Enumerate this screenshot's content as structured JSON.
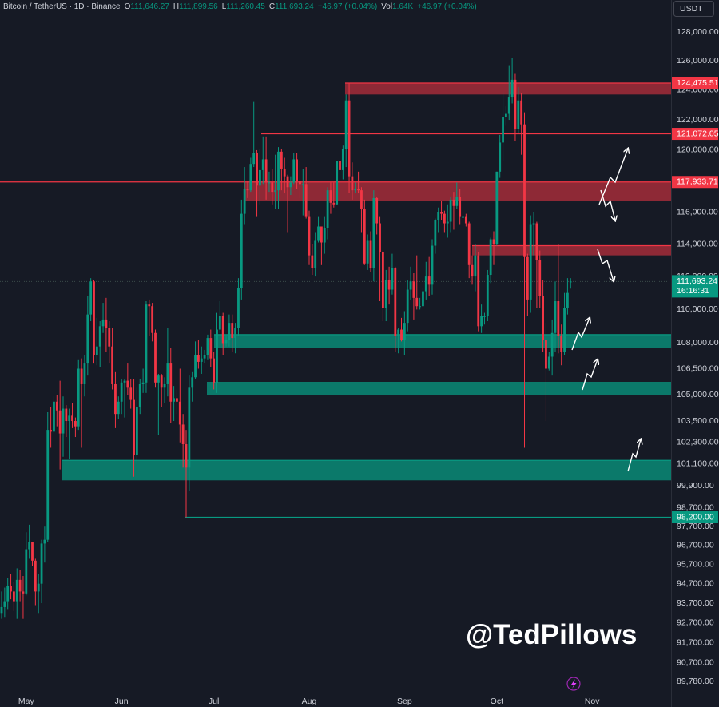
{
  "chart_data": {
    "type": "candlestick",
    "header": {
      "symbol": "Bitcoin / TetherUS · 1D · Binance",
      "fields": [
        {
          "key": "O",
          "value": "111,646.27"
        },
        {
          "key": "H",
          "value": "111,899.56"
        },
        {
          "key": "L",
          "value": "111,260.45"
        },
        {
          "key": "C",
          "value": "111,693.24"
        }
      ],
      "change": "+46.97 (+0.04%)",
      "volume": {
        "key": "Vol",
        "value": "1.64K"
      },
      "volume_change": "+46.97 (+0.04%)"
    },
    "currency": "USDT",
    "watermark": "@TedPillows",
    "x_end_label": "Nov",
    "categories": [
      null,
      null,
      null,
      null,
      null,
      null,
      null,
      null,
      "May",
      null,
      null,
      null,
      null,
      null,
      null,
      null,
      null,
      null,
      null,
      null,
      null,
      null,
      null,
      null,
      null,
      null,
      null,
      null,
      null,
      null,
      null,
      null,
      null,
      null,
      null,
      null,
      null,
      null,
      null,
      "Jun",
      null,
      null,
      null,
      null,
      null,
      null,
      null,
      null,
      null,
      null,
      null,
      null,
      null,
      null,
      null,
      null,
      null,
      null,
      null,
      null,
      null,
      null,
      null,
      null,
      null,
      null,
      null,
      null,
      null,
      "Jul",
      null,
      null,
      null,
      null,
      null,
      null,
      null,
      null,
      null,
      null,
      null,
      null,
      null,
      null,
      null,
      null,
      null,
      null,
      null,
      null,
      null,
      null,
      null,
      null,
      null,
      null,
      null,
      null,
      null,
      null,
      "Aug",
      null,
      null,
      null,
      null,
      null,
      null,
      null,
      null,
      null,
      null,
      null,
      null,
      null,
      null,
      null,
      null,
      null,
      null,
      null,
      null,
      null,
      null,
      null,
      null,
      null,
      null,
      null,
      null,
      null,
      null,
      "Sep",
      null,
      null,
      null,
      null,
      null,
      null,
      null,
      null,
      null,
      null,
      null,
      null,
      null,
      null,
      null,
      null,
      null,
      null,
      null,
      null,
      null,
      null,
      null,
      null,
      null,
      null,
      null,
      null,
      null,
      "Oct",
      null,
      null,
      null,
      null,
      null,
      null,
      null,
      null,
      null,
      null,
      null,
      null,
      null,
      null,
      null,
      null,
      null,
      null,
      null,
      null,
      null,
      null,
      null,
      null
    ],
    "open": [
      93200,
      93500,
      93800,
      94600,
      94300,
      93800,
      94900,
      94300,
      94200,
      96500,
      96900,
      95900,
      94300,
      94700,
      96800,
      97000,
      103000,
      102900,
      104600,
      104100,
      102800,
      104200,
      103500,
      103800,
      103500,
      103200,
      106500,
      105600,
      106800,
      109700,
      111700,
      107300,
      107800,
      109000,
      109400,
      108900,
      107800,
      105600,
      103900,
      104600,
      105700,
      105800,
      105400,
      104700,
      101600,
      104300,
      105600,
      105700,
      110300,
      110200,
      108600,
      105700,
      106100,
      105400,
      105600,
      106800,
      104600,
      104800,
      104600,
      103300,
      102200,
      100900,
      105400,
      106000,
      107300,
      106900,
      107100,
      107300,
      108300,
      107100,
      105700,
      108800,
      109600,
      108000,
      108200,
      109200,
      108300,
      108900,
      111300,
      115900,
      117500,
      117400,
      119100,
      119800,
      117700,
      118700,
      119400,
      117900,
      117900,
      117300,
      117400,
      119900,
      118800,
      118300,
      117600,
      117900,
      119400,
      118000,
      117800,
      117800,
      115700,
      113300,
      112500,
      114200,
      115100,
      114100,
      115000,
      117400,
      116600,
      116500,
      119300,
      118700,
      120100,
      123300,
      118300,
      117400,
      117500,
      117400,
      116200,
      112800,
      114200,
      112500,
      116900,
      115300,
      113500,
      110100,
      111800,
      111200,
      112500,
      108400,
      108800,
      108200,
      109200,
      111200,
      111700,
      110700,
      110200,
      110200,
      111100,
      112000,
      111500,
      113900,
      115500,
      116000,
      115900,
      115300,
      115400,
      116800,
      116400,
      117000,
      115700,
      115700,
      115300,
      112700,
      112000,
      113300,
      109000,
      109600,
      109600,
      112100,
      114300,
      114000,
      118600,
      120500,
      122200,
      122400,
      123500,
      124700,
      121400,
      123300,
      121700,
      113200,
      110600,
      115200,
      115300,
      113000,
      110800,
      108200,
      106500,
      107200,
      108600,
      110500,
      108400,
      107500,
      110100,
      111646.27
    ],
    "high": [
      94300,
      94500,
      95000,
      95200,
      94800,
      95500,
      95400,
      95100,
      97400,
      97800,
      96900,
      96000,
      95200,
      97000,
      97700,
      104000,
      104300,
      104900,
      105000,
      105800,
      104900,
      104400,
      104200,
      104500,
      103700,
      107000,
      107100,
      107300,
      110800,
      111900,
      111800,
      109500,
      109300,
      110400,
      110700,
      109300,
      108900,
      106300,
      104900,
      105900,
      105900,
      106800,
      105900,
      105900,
      105400,
      105900,
      106500,
      110500,
      110600,
      110400,
      108800,
      106200,
      106200,
      106000,
      108900,
      107700,
      105500,
      105300,
      106500,
      103900,
      103000,
      106100,
      106300,
      108100,
      108200,
      107800,
      107600,
      108500,
      108800,
      107500,
      109800,
      110500,
      109800,
      108400,
      109700,
      109700,
      109200,
      111900,
      116800,
      118900,
      118000,
      119500,
      123200,
      120000,
      120100,
      120900,
      120900,
      118600,
      118800,
      119700,
      120200,
      120100,
      119500,
      118400,
      118300,
      119800,
      119800,
      119300,
      118800,
      118900,
      116100,
      114000,
      114700,
      115700,
      115100,
      115700,
      117600,
      117900,
      117900,
      119300,
      122300,
      120300,
      123700,
      124475.51,
      119200,
      117900,
      118600,
      117600,
      116800,
      114600,
      114800,
      117400,
      117000,
      115700,
      113600,
      112400,
      112600,
      113400,
      112600,
      108900,
      109500,
      109900,
      111800,
      112600,
      112200,
      113300,
      110700,
      111300,
      112900,
      113200,
      114300,
      115600,
      116300,
      116700,
      116100,
      116500,
      117000,
      117300,
      117900,
      117500,
      116300,
      115900,
      115400,
      113300,
      114000,
      113500,
      110300,
      109800,
      112400,
      114400,
      114800,
      118600,
      121000,
      123900,
      122900,
      125700,
      126200,
      125100,
      124200,
      123800,
      122500,
      113400,
      115800,
      116000,
      115400,
      113600,
      111800,
      109200,
      107500,
      109400,
      111700,
      114000,
      109100,
      111000,
      111900,
      111899.56
    ],
    "low": [
      92900,
      93000,
      93400,
      93900,
      93300,
      92900,
      93800,
      92900,
      94100,
      96000,
      95600,
      93600,
      93200,
      93700,
      95800,
      96900,
      102000,
      102800,
      103200,
      100800,
      101500,
      102600,
      101400,
      103100,
      102600,
      103000,
      102000,
      104900,
      106100,
      109300,
      106800,
      106700,
      106600,
      108600,
      107500,
      106800,
      105300,
      103100,
      103600,
      103900,
      103700,
      105000,
      104200,
      100400,
      101100,
      103900,
      105100,
      105100,
      108400,
      108100,
      105400,
      102700,
      104300,
      104500,
      104900,
      103400,
      103500,
      103900,
      102300,
      100900,
      98200,
      99600,
      104600,
      105900,
      106500,
      106200,
      106800,
      107000,
      106600,
      105300,
      105100,
      108600,
      107300,
      107800,
      107800,
      107500,
      107400,
      108400,
      110600,
      115200,
      116900,
      117300,
      118900,
      115700,
      116500,
      117800,
      116800,
      117300,
      116500,
      116200,
      116200,
      117400,
      117200,
      114700,
      117100,
      117800,
      117500,
      116900,
      115800,
      115600,
      112700,
      112100,
      112000,
      114100,
      112700,
      113400,
      114300,
      115900,
      116300,
      116500,
      118100,
      118100,
      118900,
      117200,
      116800,
      117200,
      117200,
      114700,
      112700,
      112400,
      112300,
      111700,
      114600,
      110500,
      109300,
      109300,
      110300,
      110900,
      107500,
      107400,
      108100,
      107300,
      108700,
      110600,
      109400,
      110000,
      110000,
      110200,
      110600,
      110800,
      110900,
      113400,
      114700,
      115500,
      114700,
      114400,
      114700,
      114900,
      116200,
      115200,
      115500,
      115100,
      111900,
      111500,
      111100,
      108700,
      108600,
      109100,
      109300,
      111600,
      112700,
      113900,
      118200,
      119300,
      121600,
      122000,
      123100,
      120600,
      121100,
      119700,
      102000,
      109600,
      109800,
      113300,
      110100,
      110100,
      107500,
      103500,
      106400,
      106100,
      107500,
      107400,
      106700,
      107300,
      109700,
      111260.45
    ],
    "close": [
      93500,
      93800,
      94600,
      94300,
      93800,
      94900,
      94300,
      94200,
      96500,
      96900,
      95900,
      94300,
      94700,
      96800,
      97000,
      103000,
      102900,
      104600,
      104100,
      102800,
      104200,
      103500,
      103800,
      103500,
      103200,
      106500,
      105600,
      106800,
      109700,
      111700,
      107300,
      107800,
      109000,
      109400,
      108900,
      107800,
      105600,
      103900,
      104600,
      105700,
      105800,
      105400,
      104700,
      101600,
      104300,
      105600,
      105700,
      110300,
      110200,
      108600,
      105700,
      106100,
      105400,
      105600,
      106800,
      104600,
      104800,
      104600,
      103300,
      102200,
      100900,
      105400,
      106000,
      107300,
      106900,
      107100,
      107300,
      108300,
      107100,
      105700,
      108800,
      109600,
      108000,
      108200,
      109200,
      108300,
      108900,
      111300,
      115900,
      117500,
      117400,
      119100,
      119800,
      117700,
      118700,
      119400,
      117900,
      117900,
      117300,
      117400,
      119900,
      118800,
      118300,
      117600,
      117900,
      119400,
      118000,
      117800,
      117800,
      115700,
      113300,
      112500,
      114200,
      115100,
      114100,
      115000,
      117400,
      116600,
      116500,
      119300,
      118700,
      120100,
      123300,
      118300,
      117400,
      117500,
      117400,
      116200,
      112800,
      114200,
      112500,
      116900,
      115300,
      113500,
      110100,
      111800,
      111200,
      112500,
      108400,
      108800,
      108200,
      109200,
      111200,
      111700,
      110700,
      110200,
      110200,
      111100,
      112000,
      111500,
      113900,
      115500,
      116000,
      115900,
      115300,
      115400,
      116800,
      116400,
      117000,
      115700,
      115700,
      115300,
      112700,
      112000,
      113300,
      109000,
      109600,
      109600,
      112100,
      114300,
      114000,
      118600,
      120500,
      122200,
      122400,
      123500,
      124700,
      121400,
      123300,
      121700,
      113200,
      110600,
      115200,
      115300,
      113000,
      110800,
      108200,
      106500,
      107200,
      108600,
      110500,
      108400,
      107500,
      110100,
      111000,
      111693.24
    ],
    "up_color": "#089981",
    "down_color": "#f23645",
    "log_scale": true,
    "grid": false,
    "ylim": [
      89311,
      130253
    ],
    "yticks": [
      {
        "value": 128000,
        "label": "128,000.00"
      },
      {
        "value": 126000,
        "label": "126,000.00"
      },
      {
        "value": 124000,
        "label": "124,000.00"
      },
      {
        "value": 122000,
        "label": "122,000.00"
      },
      {
        "value": 120000,
        "label": "120,000.00"
      },
      {
        "value": 116000,
        "label": "116,000.00"
      },
      {
        "value": 114000,
        "label": "114,000.00"
      },
      {
        "value": 112000,
        "label": "112,000.00"
      },
      {
        "value": 110000,
        "label": "110,000.00"
      },
      {
        "value": 108000,
        "label": "108,000.00"
      },
      {
        "value": 106500,
        "label": "106,500.00"
      },
      {
        "value": 105000,
        "label": "105,000.00"
      },
      {
        "value": 103500,
        "label": "103,500.00"
      },
      {
        "value": 102300,
        "label": "102,300.00"
      },
      {
        "value": 101100,
        "label": "101,100.00"
      },
      {
        "value": 99900,
        "label": "99,900.00"
      },
      {
        "value": 98700,
        "label": "98,700.00"
      },
      {
        "value": 97700,
        "label": "97,700.00"
      },
      {
        "value": 96700,
        "label": "96,700.00"
      },
      {
        "value": 95700,
        "label": "95,700.00"
      },
      {
        "value": 94700,
        "label": "94,700.00"
      },
      {
        "value": 93700,
        "label": "93,700.00"
      },
      {
        "value": 92700,
        "label": "92,700.00"
      },
      {
        "value": 91700,
        "label": "91,700.00"
      },
      {
        "value": 90700,
        "label": "90,700.00"
      },
      {
        "value": 89780,
        "label": "89,780.00"
      }
    ],
    "levels": [
      {
        "value": 124475.51,
        "label": "124,475.51",
        "bottom": 123700,
        "color": "#f23645"
      },
      {
        "value": 121072.05,
        "label": "121,072.05",
        "color": "#f23645"
      },
      {
        "value": 117933.71,
        "label": "117,933.71",
        "bottom": 116700,
        "color": "#f23645"
      },
      {
        "value": 113900,
        "bottom": 113300,
        "color": "#f23645"
      },
      {
        "value": 108500,
        "bottom": 107700,
        "color": "#089981"
      },
      {
        "value": 105700,
        "bottom": 105000,
        "color": "#089981"
      },
      {
        "value": 101300,
        "bottom": 100200,
        "color": "#089981"
      },
      {
        "value": 98200,
        "label": "98,200.00",
        "color": "#089981"
      }
    ],
    "last_price": {
      "value": 111693.24,
      "label": "111,693.24",
      "countdown": "16:16:31",
      "color": "#089981"
    }
  }
}
